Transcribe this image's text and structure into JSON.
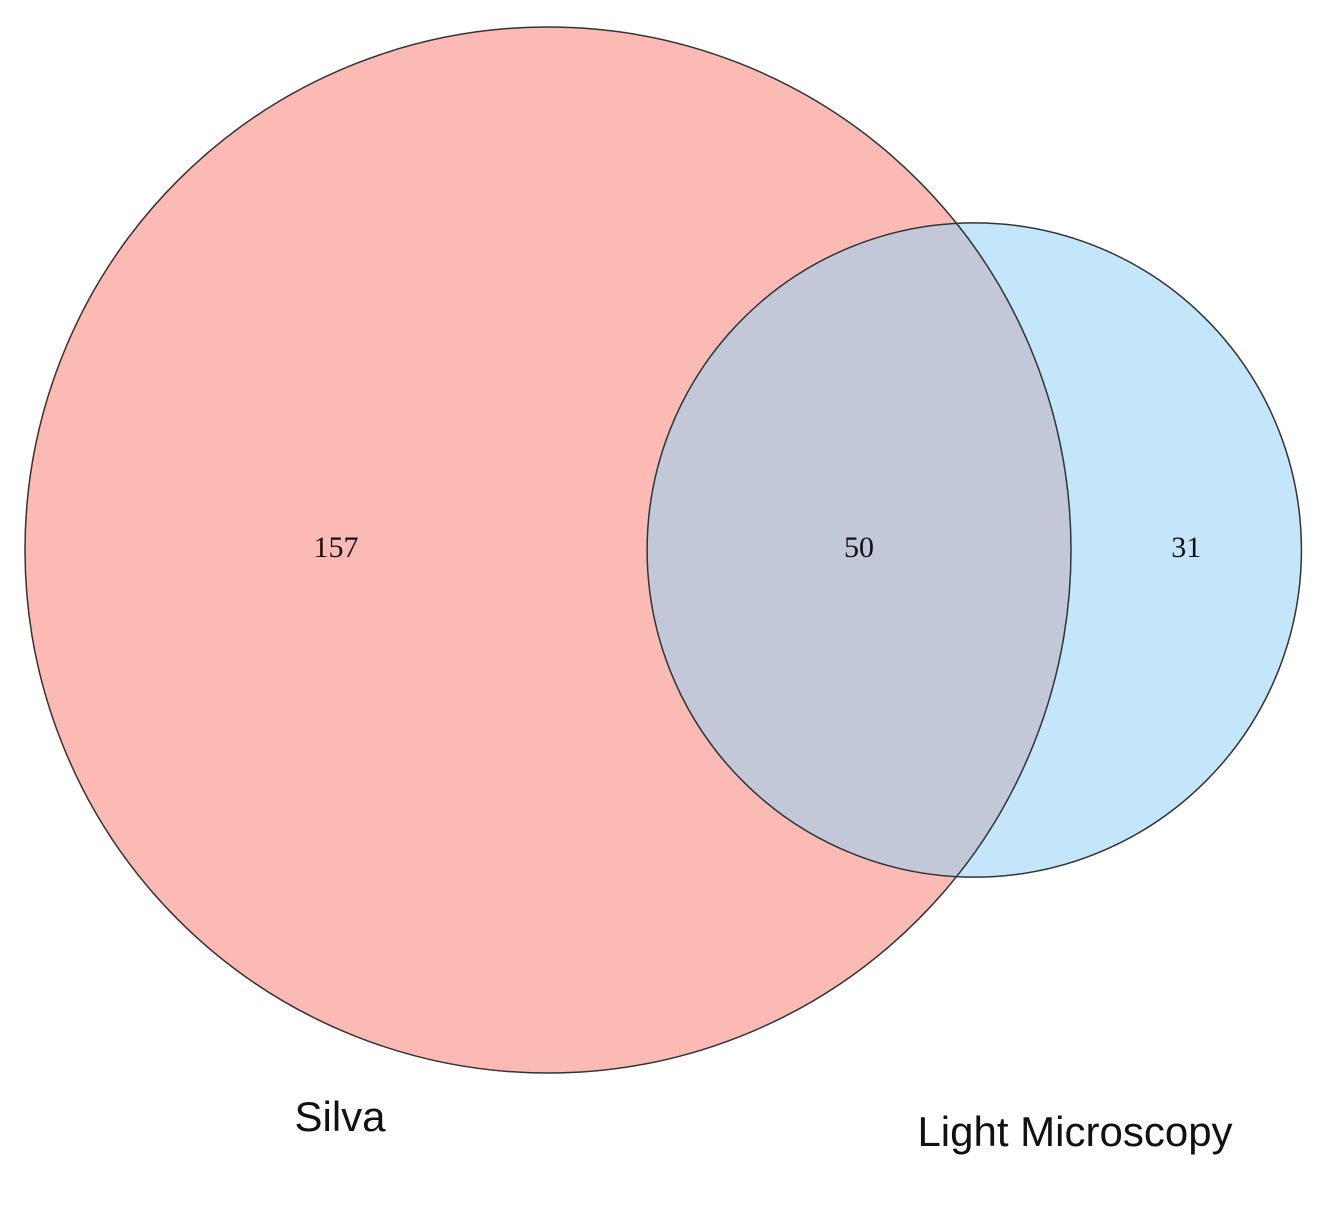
{
  "chart_data": {
    "type": "venn",
    "sets": [
      {
        "name": "Silva",
        "color": "#fbbab4",
        "only": 157
      },
      {
        "name": "Light Microscopy",
        "color": "#c3e6fa",
        "only": 31
      }
    ],
    "overlap": 50,
    "overlap_color": "#c3c8d9"
  }
}
